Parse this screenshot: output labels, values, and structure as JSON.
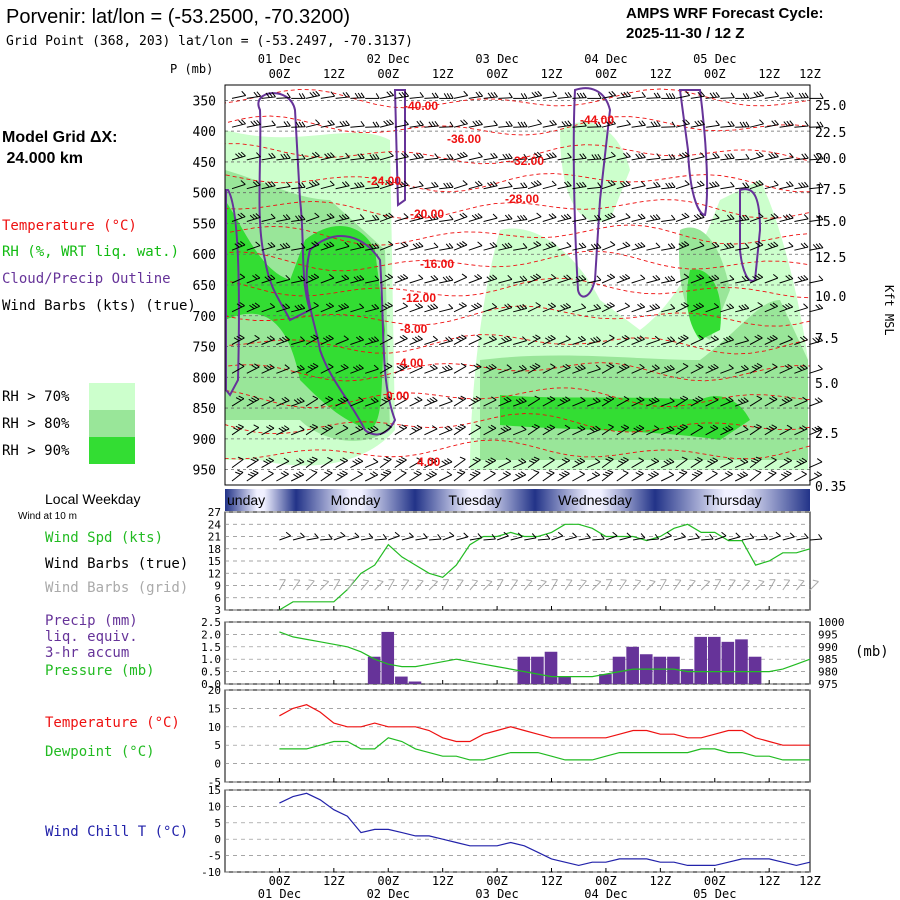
{
  "header": {
    "title": "Porvenir:  lat/lon = (-53.2500, -70.3200)",
    "subtitle": "Grid Point (368, 203) lat/lon = (-53.2497, -70.3137)",
    "cycle_line1": "AMPS WRF Forecast Cycle:",
    "cycle_line2": "2025-11-30 / 12  Z"
  },
  "left_panel": {
    "model_grid_label": "Model Grid ΔX:",
    "model_grid_value": " 24.000 km",
    "legend_temperature": "Temperature (°C)",
    "legend_rh": "RH (%, WRT liq. wat.)",
    "legend_cloud": "Cloud/Precip Outline",
    "legend_wind": "Wind Barbs (kts) (true)",
    "rh_keys": [
      {
        "label": "RH > 70%",
        "color": "#ccffcc"
      },
      {
        "label": "RH > 80%",
        "color": "#99e699"
      },
      {
        "label": "RH > 90%",
        "color": "#33dd33"
      }
    ]
  },
  "colors": {
    "temperature": "#ee1111",
    "rh_label": "#11bb11",
    "cloud": "#663399",
    "wind": "#000000",
    "grid_barb": "#aaaaaa",
    "precip": "#663399",
    "pressure": "#22bb22",
    "dewpoint": "#22bb22",
    "windchill": "#2222aa",
    "day_band_dark": "#223388",
    "day_band_light": "#f0f0ff"
  },
  "time_axis": {
    "top_dates": [
      "01 Dec",
      "02 Dec",
      "03 Dec",
      "04 Dec",
      "05 Dec"
    ],
    "hours": [
      "00Z",
      "12Z",
      "00Z",
      "12Z",
      "00Z",
      "12Z",
      "00Z",
      "12Z",
      "00Z",
      "12Z"
    ],
    "bottom_dates": [
      "01 Dec",
      "02 Dec",
      "03 Dec",
      "04 Dec",
      "05 Dec"
    ],
    "weekdays": [
      "unday",
      "Monday",
      "Tuesday",
      "Wednesday",
      "Thursday"
    ],
    "weekday_title": "Local Weekday"
  },
  "chart_data": [
    {
      "type": "heatmap",
      "name": "vertical-profile",
      "ylabel_left": "P (mb)",
      "ylabel_right": "Kft MSL",
      "pressure_levels": [
        350,
        400,
        450,
        500,
        550,
        600,
        650,
        700,
        750,
        800,
        850,
        900,
        950
      ],
      "height_ticks": [
        "25.0",
        "22.5",
        "20.0",
        "17.5",
        "15.0",
        "12.5",
        "10.0",
        "7.5",
        "5.0",
        "2.5",
        "0.35"
      ],
      "temperature_labels": [
        "-40.00",
        "-36.00",
        "-32.00",
        "-28.00",
        "-24.00",
        "-20.00",
        "-16.00",
        "-12.00",
        "-8.00",
        "-4.00",
        "0.00",
        "4.00",
        "-44.00"
      ]
    },
    {
      "type": "line",
      "name": "wind-speed",
      "label_10m": "Wind at 10 m",
      "legend": [
        "Wind Spd (kts)",
        "Wind Barbs (true)",
        "Wind Barbs (grid)"
      ],
      "yticks": [
        3,
        6,
        9,
        12,
        15,
        18,
        21,
        24,
        27
      ],
      "ylim": [
        3,
        27
      ],
      "x_hours": [
        0,
        3,
        6,
        9,
        12,
        15,
        18,
        21,
        24,
        27,
        30,
        33,
        36,
        39,
        42,
        45,
        48,
        51,
        54,
        57,
        60,
        63,
        66,
        69,
        72,
        75,
        78,
        81,
        84,
        87,
        90,
        93,
        96,
        99,
        102,
        105,
        108,
        111,
        114,
        117
      ],
      "values": [
        3,
        5,
        5,
        5,
        5,
        8,
        12,
        14,
        19,
        16,
        14,
        12,
        11,
        14,
        19,
        21,
        21,
        22,
        21,
        21,
        22,
        24,
        24,
        23,
        21,
        21,
        21,
        20,
        21,
        23,
        24,
        22,
        22,
        20,
        20,
        14,
        15,
        17,
        17,
        18
      ]
    },
    {
      "type": "bar",
      "name": "precip-pressure",
      "legend": [
        "Precip (mm)",
        "liq. equiv.",
        "3-hr accum",
        "Pressure (mb)"
      ],
      "yticks_left": [
        "0.0",
        "0.5",
        "1.0",
        "1.5",
        "2.0",
        "2.5"
      ],
      "ylim_left": [
        0,
        2.5
      ],
      "yticks_right": [
        "1000",
        "995",
        "990",
        "985",
        "980",
        "975"
      ],
      "ylim_right": [
        975,
        1000
      ],
      "right_unit": "(mb)",
      "precip_hours": [
        0,
        3,
        6,
        9,
        12,
        15,
        18,
        21,
        24,
        27,
        30,
        33,
        36,
        39,
        42,
        45,
        48,
        51,
        54,
        57,
        60,
        63,
        66,
        69,
        72,
        75,
        78,
        81,
        84,
        87,
        90,
        93,
        96,
        99,
        102,
        105,
        108,
        111,
        114,
        117
      ],
      "precip_values": [
        0,
        0,
        0,
        0,
        0,
        0,
        0,
        1.1,
        2.1,
        0.3,
        0.1,
        0,
        0,
        0,
        0,
        0,
        0,
        0,
        1.1,
        1.1,
        1.3,
        0.3,
        0,
        0,
        0.4,
        1.1,
        1.5,
        1.2,
        1.1,
        1.1,
        0.6,
        1.9,
        1.9,
        1.7,
        1.8,
        1.1,
        0,
        0,
        0,
        0
      ],
      "pressure_values": [
        996,
        994,
        993,
        992,
        991,
        990,
        988,
        985,
        983,
        982,
        982,
        983,
        984,
        985,
        984,
        983,
        982,
        981,
        980,
        979,
        978,
        978,
        978,
        978,
        979,
        980,
        981,
        981,
        981,
        981,
        980,
        980,
        980,
        980,
        980,
        980,
        980,
        981,
        983,
        985
      ]
    },
    {
      "type": "line",
      "name": "temperature-dewpoint",
      "legend": [
        "Temperature (°C)",
        "Dewpoint (°C)"
      ],
      "yticks": [
        -5,
        0,
        5,
        10,
        15,
        20
      ],
      "ylim": [
        -5,
        20
      ],
      "x_hours": [
        0,
        3,
        6,
        9,
        12,
        15,
        18,
        21,
        24,
        27,
        30,
        33,
        36,
        39,
        42,
        45,
        48,
        51,
        54,
        57,
        60,
        63,
        66,
        69,
        72,
        75,
        78,
        81,
        84,
        87,
        90,
        93,
        96,
        99,
        102,
        105,
        108,
        111,
        114,
        117
      ],
      "temperature": [
        13,
        15,
        16,
        14,
        11,
        10,
        10,
        11,
        10,
        10,
        10,
        9,
        7,
        6,
        6,
        8,
        9,
        10,
        9,
        8,
        7,
        7,
        7,
        7,
        7,
        8,
        9,
        9,
        8,
        8,
        7,
        7,
        8,
        9,
        9,
        7,
        6,
        5,
        5,
        5
      ],
      "dewpoint": [
        4,
        4,
        4,
        5,
        6,
        6,
        4,
        4,
        7,
        6,
        4,
        3,
        2,
        2,
        1,
        1,
        2,
        3,
        3,
        3,
        2,
        1,
        1,
        1,
        2,
        3,
        3,
        3,
        3,
        3,
        3,
        4,
        4,
        3,
        3,
        2,
        2,
        1,
        1,
        1
      ]
    },
    {
      "type": "line",
      "name": "wind-chill",
      "legend": [
        "Wind Chill T (°C)"
      ],
      "yticks": [
        -10,
        -5,
        0,
        5,
        10,
        15
      ],
      "ylim": [
        -10,
        15
      ],
      "x_hours": [
        0,
        3,
        6,
        9,
        12,
        15,
        18,
        21,
        24,
        27,
        30,
        33,
        36,
        39,
        42,
        45,
        48,
        51,
        54,
        57,
        60,
        63,
        66,
        69,
        72,
        75,
        78,
        81,
        84,
        87,
        90,
        93,
        96,
        99,
        102,
        105,
        108,
        111,
        114,
        117
      ],
      "values": [
        11,
        13,
        14,
        12,
        9,
        7,
        2,
        3,
        3,
        2,
        1,
        1,
        0,
        -1,
        -2,
        -2,
        -2,
        -1,
        -2,
        -4,
        -6,
        -7,
        -8,
        -7,
        -7,
        -6,
        -6,
        -6,
        -7,
        -7,
        -8,
        -8,
        -8,
        -7,
        -6,
        -6,
        -6,
        -7,
        -8,
        -7
      ]
    }
  ]
}
